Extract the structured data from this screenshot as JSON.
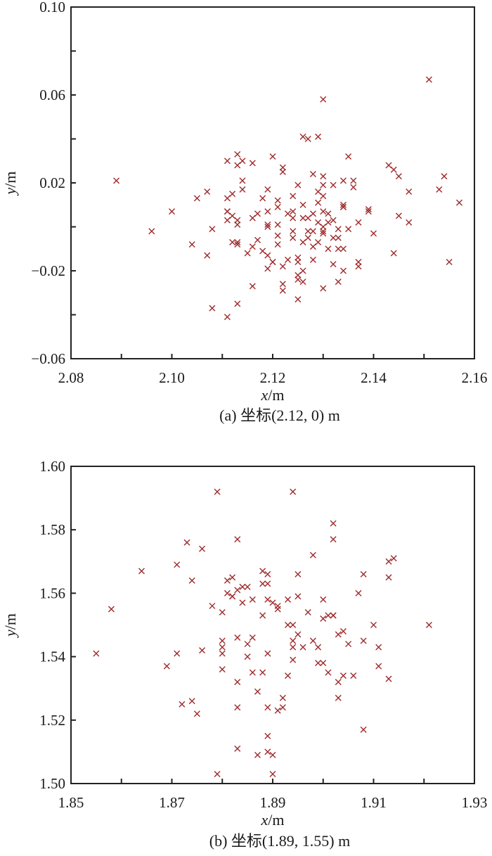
{
  "marker_color": "#9e2a2b",
  "chart_data": [
    {
      "type": "scatter",
      "caption": "(a) 坐标(2.12, 0) m",
      "xlabel_var": "x",
      "xlabel_unit": "/m",
      "ylabel_var": "y",
      "ylabel_unit": "/m",
      "marker": "x",
      "grid": false,
      "xlim": [
        2.08,
        2.16
      ],
      "ylim": [
        -0.06,
        0.1
      ],
      "xticks": [
        2.08,
        2.09,
        2.1,
        2.11,
        2.12,
        2.13,
        2.14,
        2.15,
        2.16
      ],
      "xticklabels": [
        "2.08",
        "",
        "2.10",
        "",
        "2.12",
        "",
        "2.14",
        "",
        "2.16"
      ],
      "yticks": [
        -0.06,
        -0.04,
        -0.02,
        0.0,
        0.02,
        0.04,
        0.06,
        0.08,
        0.1
      ],
      "yticklabels": [
        "−0.06",
        "",
        "−0.02",
        "",
        "0.02",
        "",
        "0.06",
        "",
        "0.10"
      ],
      "points": [
        [
          2.089,
          0.021
        ],
        [
          2.111,
          0.03
        ],
        [
          2.113,
          0.033
        ],
        [
          2.114,
          0.03
        ],
        [
          2.113,
          0.028
        ],
        [
          2.116,
          0.029
        ],
        [
          2.12,
          0.032
        ],
        [
          2.114,
          0.021
        ],
        [
          2.151,
          0.067
        ],
        [
          2.13,
          0.058
        ],
        [
          2.126,
          0.041
        ],
        [
          2.127,
          0.04
        ],
        [
          2.129,
          0.041
        ],
        [
          2.135,
          0.032
        ],
        [
          2.143,
          0.028
        ],
        [
          2.144,
          0.026
        ],
        [
          2.145,
          0.023
        ],
        [
          2.154,
          0.023
        ],
        [
          2.122,
          0.027
        ],
        [
          2.122,
          0.025
        ],
        [
          2.128,
          0.024
        ],
        [
          2.13,
          0.023
        ],
        [
          2.125,
          0.019
        ],
        [
          2.13,
          0.019
        ],
        [
          2.132,
          0.019
        ],
        [
          2.134,
          0.021
        ],
        [
          2.136,
          0.021
        ],
        [
          2.114,
          0.017
        ],
        [
          2.119,
          0.017
        ],
        [
          2.107,
          0.016
        ],
        [
          2.105,
          0.013
        ],
        [
          2.111,
          0.013
        ],
        [
          2.112,
          0.015
        ],
        [
          2.118,
          0.013
        ],
        [
          2.121,
          0.012
        ],
        [
          2.121,
          0.009
        ],
        [
          2.1,
          0.007
        ],
        [
          2.111,
          0.007
        ],
        [
          2.111,
          0.007
        ],
        [
          2.112,
          0.005
        ],
        [
          2.111,
          0.003
        ],
        [
          2.113,
          0.003
        ],
        [
          2.113,
          0.001
        ],
        [
          2.116,
          0.004
        ],
        [
          2.117,
          0.006
        ],
        [
          2.119,
          0.007
        ],
        [
          2.119,
          0.0
        ],
        [
          2.119,
          0.001
        ],
        [
          2.121,
          0.001
        ],
        [
          2.121,
          -0.004
        ],
        [
          2.096,
          -0.002
        ],
        [
          2.108,
          -0.001
        ],
        [
          2.104,
          -0.008
        ],
        [
          2.107,
          -0.013
        ],
        [
          2.112,
          -0.007
        ],
        [
          2.113,
          -0.008
        ],
        [
          2.113,
          -0.007
        ],
        [
          2.116,
          -0.009
        ],
        [
          2.117,
          -0.006
        ],
        [
          2.115,
          -0.012
        ],
        [
          2.118,
          -0.011
        ],
        [
          2.119,
          -0.013
        ],
        [
          2.12,
          -0.016
        ],
        [
          2.12,
          -0.016
        ],
        [
          2.119,
          -0.019
        ],
        [
          2.121,
          -0.008
        ],
        [
          2.122,
          -0.018
        ],
        [
          2.116,
          -0.027
        ],
        [
          2.108,
          -0.037
        ],
        [
          2.113,
          -0.035
        ],
        [
          2.111,
          -0.041
        ],
        [
          2.136,
          0.018
        ],
        [
          2.147,
          0.016
        ],
        [
          2.153,
          0.017
        ],
        [
          2.157,
          0.011
        ],
        [
          2.129,
          0.016
        ],
        [
          2.13,
          0.014
        ],
        [
          2.124,
          0.014
        ],
        [
          2.126,
          0.01
        ],
        [
          2.129,
          0.011
        ],
        [
          2.134,
          0.01
        ],
        [
          2.134,
          0.009
        ],
        [
          2.134,
          0.009
        ],
        [
          2.139,
          0.007
        ],
        [
          2.139,
          0.008
        ],
        [
          2.124,
          0.007
        ],
        [
          2.123,
          0.006
        ],
        [
          2.124,
          0.004
        ],
        [
          2.126,
          0.004
        ],
        [
          2.127,
          0.004
        ],
        [
          2.128,
          0.006
        ],
        [
          2.13,
          0.007
        ],
        [
          2.131,
          0.006
        ],
        [
          2.132,
          0.003
        ],
        [
          2.131,
          0.002
        ],
        [
          2.129,
          0.002
        ],
        [
          2.13,
          0.0
        ],
        [
          2.13,
          -0.002
        ],
        [
          2.13,
          -0.003
        ],
        [
          2.133,
          -0.001
        ],
        [
          2.135,
          -0.001
        ],
        [
          2.137,
          0.002
        ],
        [
          2.145,
          0.005
        ],
        [
          2.147,
          0.002
        ],
        [
          2.14,
          -0.003
        ],
        [
          2.124,
          -0.002
        ],
        [
          2.127,
          -0.002
        ],
        [
          2.128,
          -0.002
        ],
        [
          2.124,
          -0.005
        ],
        [
          2.126,
          -0.007
        ],
        [
          2.127,
          -0.005
        ],
        [
          2.129,
          -0.007
        ],
        [
          2.128,
          -0.009
        ],
        [
          2.132,
          -0.005
        ],
        [
          2.133,
          -0.005
        ],
        [
          2.131,
          -0.01
        ],
        [
          2.133,
          -0.01
        ],
        [
          2.134,
          -0.01
        ],
        [
          2.144,
          -0.012
        ],
        [
          2.155,
          -0.016
        ],
        [
          2.123,
          -0.015
        ],
        [
          2.125,
          -0.014
        ],
        [
          2.125,
          -0.016
        ],
        [
          2.128,
          -0.015
        ],
        [
          2.132,
          -0.017
        ],
        [
          2.137,
          -0.016
        ],
        [
          2.137,
          -0.018
        ],
        [
          2.134,
          -0.02
        ],
        [
          2.126,
          -0.02
        ],
        [
          2.125,
          -0.022
        ],
        [
          2.125,
          -0.024
        ],
        [
          2.126,
          -0.025
        ],
        [
          2.122,
          -0.026
        ],
        [
          2.122,
          -0.029
        ],
        [
          2.13,
          -0.028
        ],
        [
          2.133,
          -0.025
        ],
        [
          2.125,
          -0.033
        ]
      ]
    },
    {
      "type": "scatter",
      "caption": "(b) 坐标(1.89, 1.55) m",
      "xlabel_var": "x",
      "xlabel_unit": "/m",
      "ylabel_var": "y",
      "ylabel_unit": "/m",
      "marker": "x",
      "grid": false,
      "xlim": [
        1.85,
        1.93
      ],
      "ylim": [
        1.5,
        1.6
      ],
      "xticks": [
        1.85,
        1.86,
        1.87,
        1.88,
        1.89,
        1.9,
        1.91,
        1.92,
        1.93
      ],
      "xticklabels": [
        "1.85",
        "",
        "1.87",
        "",
        "1.89",
        "",
        "1.91",
        "",
        "1.93"
      ],
      "yticks": [
        1.5,
        1.52,
        1.54,
        1.56,
        1.58,
        1.6
      ],
      "yticklabels": [
        "1.50",
        "1.52",
        "1.54",
        "1.56",
        "1.58",
        "1.60"
      ],
      "points": [
        [
          1.879,
          1.592
        ],
        [
          1.873,
          1.576
        ],
        [
          1.883,
          1.577
        ],
        [
          1.876,
          1.574
        ],
        [
          1.871,
          1.569
        ],
        [
          1.864,
          1.567
        ],
        [
          1.874,
          1.564
        ],
        [
          1.858,
          1.555
        ],
        [
          1.881,
          1.564
        ],
        [
          1.882,
          1.565
        ],
        [
          1.883,
          1.561
        ],
        [
          1.881,
          1.56
        ],
        [
          1.882,
          1.559
        ],
        [
          1.882,
          1.559
        ],
        [
          1.884,
          1.562
        ],
        [
          1.885,
          1.562
        ],
        [
          1.884,
          1.557
        ],
        [
          1.886,
          1.558
        ],
        [
          1.888,
          1.567
        ],
        [
          1.889,
          1.566
        ],
        [
          1.889,
          1.563
        ],
        [
          1.888,
          1.563
        ],
        [
          1.889,
          1.558
        ],
        [
          1.89,
          1.557
        ],
        [
          1.891,
          1.555
        ],
        [
          1.891,
          1.556
        ],
        [
          1.878,
          1.556
        ],
        [
          1.88,
          1.554
        ],
        [
          1.888,
          1.553
        ],
        [
          1.894,
          1.592
        ],
        [
          1.902,
          1.582
        ],
        [
          1.902,
          1.577
        ],
        [
          1.898,
          1.572
        ],
        [
          1.895,
          1.566
        ],
        [
          1.913,
          1.57
        ],
        [
          1.914,
          1.571
        ],
        [
          1.913,
          1.565
        ],
        [
          1.908,
          1.566
        ],
        [
          1.907,
          1.56
        ],
        [
          1.895,
          1.559
        ],
        [
          1.893,
          1.558
        ],
        [
          1.9,
          1.558
        ],
        [
          1.897,
          1.554
        ],
        [
          1.9,
          1.552
        ],
        [
          1.901,
          1.553
        ],
        [
          1.902,
          1.553
        ],
        [
          1.902,
          1.553
        ],
        [
          1.893,
          1.55
        ],
        [
          1.894,
          1.55
        ],
        [
          1.91,
          1.55
        ],
        [
          1.921,
          1.55
        ],
        [
          1.903,
          1.547
        ],
        [
          1.904,
          1.548
        ],
        [
          1.855,
          1.541
        ],
        [
          1.869,
          1.537
        ],
        [
          1.871,
          1.541
        ],
        [
          1.876,
          1.542
        ],
        [
          1.872,
          1.525
        ],
        [
          1.874,
          1.526
        ],
        [
          1.875,
          1.522
        ],
        [
          1.88,
          1.545
        ],
        [
          1.88,
          1.543
        ],
        [
          1.88,
          1.541
        ],
        [
          1.88,
          1.536
        ],
        [
          1.883,
          1.546
        ],
        [
          1.885,
          1.544
        ],
        [
          1.886,
          1.546
        ],
        [
          1.885,
          1.54
        ],
        [
          1.883,
          1.532
        ],
        [
          1.886,
          1.535
        ],
        [
          1.888,
          1.535
        ],
        [
          1.887,
          1.529
        ],
        [
          1.889,
          1.541
        ],
        [
          1.883,
          1.524
        ],
        [
          1.889,
          1.524
        ],
        [
          1.891,
          1.523
        ],
        [
          1.889,
          1.515
        ],
        [
          1.883,
          1.511
        ],
        [
          1.887,
          1.509
        ],
        [
          1.889,
          1.51
        ],
        [
          1.89,
          1.509
        ],
        [
          1.879,
          1.503
        ],
        [
          1.89,
          1.503
        ],
        [
          1.895,
          1.547
        ],
        [
          1.894,
          1.545
        ],
        [
          1.894,
          1.543
        ],
        [
          1.908,
          1.545
        ],
        [
          1.905,
          1.544
        ],
        [
          1.898,
          1.545
        ],
        [
          1.896,
          1.543
        ],
        [
          1.899,
          1.543
        ],
        [
          1.911,
          1.543
        ],
        [
          1.894,
          1.539
        ],
        [
          1.899,
          1.538
        ],
        [
          1.9,
          1.538
        ],
        [
          1.901,
          1.535
        ],
        [
          1.911,
          1.537
        ],
        [
          1.913,
          1.533
        ],
        [
          1.893,
          1.534
        ],
        [
          1.904,
          1.534
        ],
        [
          1.906,
          1.534
        ],
        [
          1.903,
          1.532
        ],
        [
          1.903,
          1.527
        ],
        [
          1.892,
          1.527
        ],
        [
          1.892,
          1.524
        ],
        [
          1.908,
          1.517
        ]
      ]
    }
  ]
}
